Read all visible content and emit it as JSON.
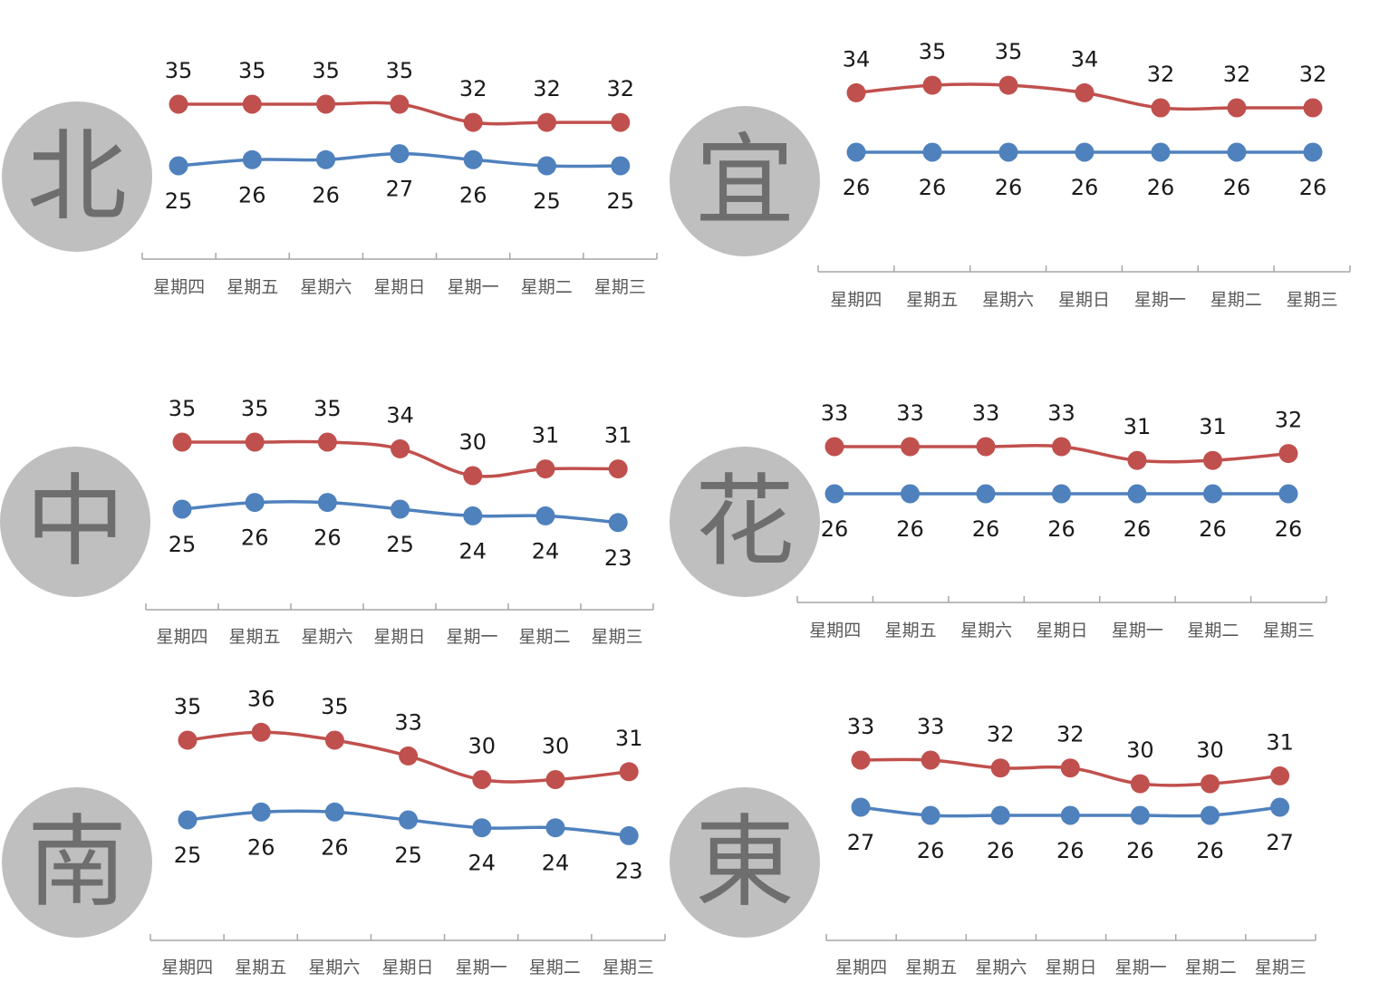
{
  "colors": {
    "high": "#C0504D",
    "low": "#4F81BD",
    "badge": "#BFBFBF",
    "badge_text": "#6E6E6E",
    "axis": "#A6A6A6"
  },
  "chart_data": [
    {
      "type": "line",
      "badge": "北",
      "categories": [
        "星期四",
        "星期五",
        "星期六",
        "星期日",
        "星期一",
        "星期二",
        "星期三"
      ],
      "series": [
        {
          "values": [
            35,
            35,
            35,
            35,
            32,
            32,
            32
          ]
        },
        {
          "values": [
            25,
            26,
            26,
            27,
            26,
            25,
            25
          ]
        }
      ]
    },
    {
      "type": "line",
      "badge": "宜",
      "categories": [
        "星期四",
        "星期五",
        "星期六",
        "星期日",
        "星期一",
        "星期二",
        "星期三"
      ],
      "series": [
        {
          "values": [
            34,
            35,
            35,
            34,
            32,
            32,
            32
          ]
        },
        {
          "values": [
            26,
            26,
            26,
            26,
            26,
            26,
            26
          ]
        }
      ]
    },
    {
      "type": "line",
      "badge": "中",
      "categories": [
        "星期四",
        "星期五",
        "星期六",
        "星期日",
        "星期一",
        "星期二",
        "星期三"
      ],
      "series": [
        {
          "values": [
            35,
            35,
            35,
            34,
            30,
            31,
            31
          ]
        },
        {
          "values": [
            25,
            26,
            26,
            25,
            24,
            24,
            23
          ]
        }
      ]
    },
    {
      "type": "line",
      "badge": "花",
      "categories": [
        "星期四",
        "星期五",
        "星期六",
        "星期日",
        "星期一",
        "星期二",
        "星期三"
      ],
      "series": [
        {
          "values": [
            33,
            33,
            33,
            33,
            31,
            31,
            32
          ]
        },
        {
          "values": [
            26,
            26,
            26,
            26,
            26,
            26,
            26
          ]
        }
      ]
    },
    {
      "type": "line",
      "badge": "南",
      "categories": [
        "星期四",
        "星期五",
        "星期六",
        "星期日",
        "星期一",
        "星期二",
        "星期三"
      ],
      "series": [
        {
          "values": [
            35,
            36,
            35,
            33,
            30,
            30,
            31
          ]
        },
        {
          "values": [
            25,
            26,
            26,
            25,
            24,
            24,
            23
          ]
        }
      ]
    },
    {
      "type": "line",
      "badge": "東",
      "categories": [
        "星期四",
        "星期五",
        "星期六",
        "星期日",
        "星期一",
        "星期二",
        "星期三"
      ],
      "series": [
        {
          "values": [
            33,
            33,
            32,
            32,
            30,
            30,
            31
          ]
        },
        {
          "values": [
            27,
            26,
            26,
            26,
            26,
            26,
            27
          ]
        }
      ]
    }
  ]
}
